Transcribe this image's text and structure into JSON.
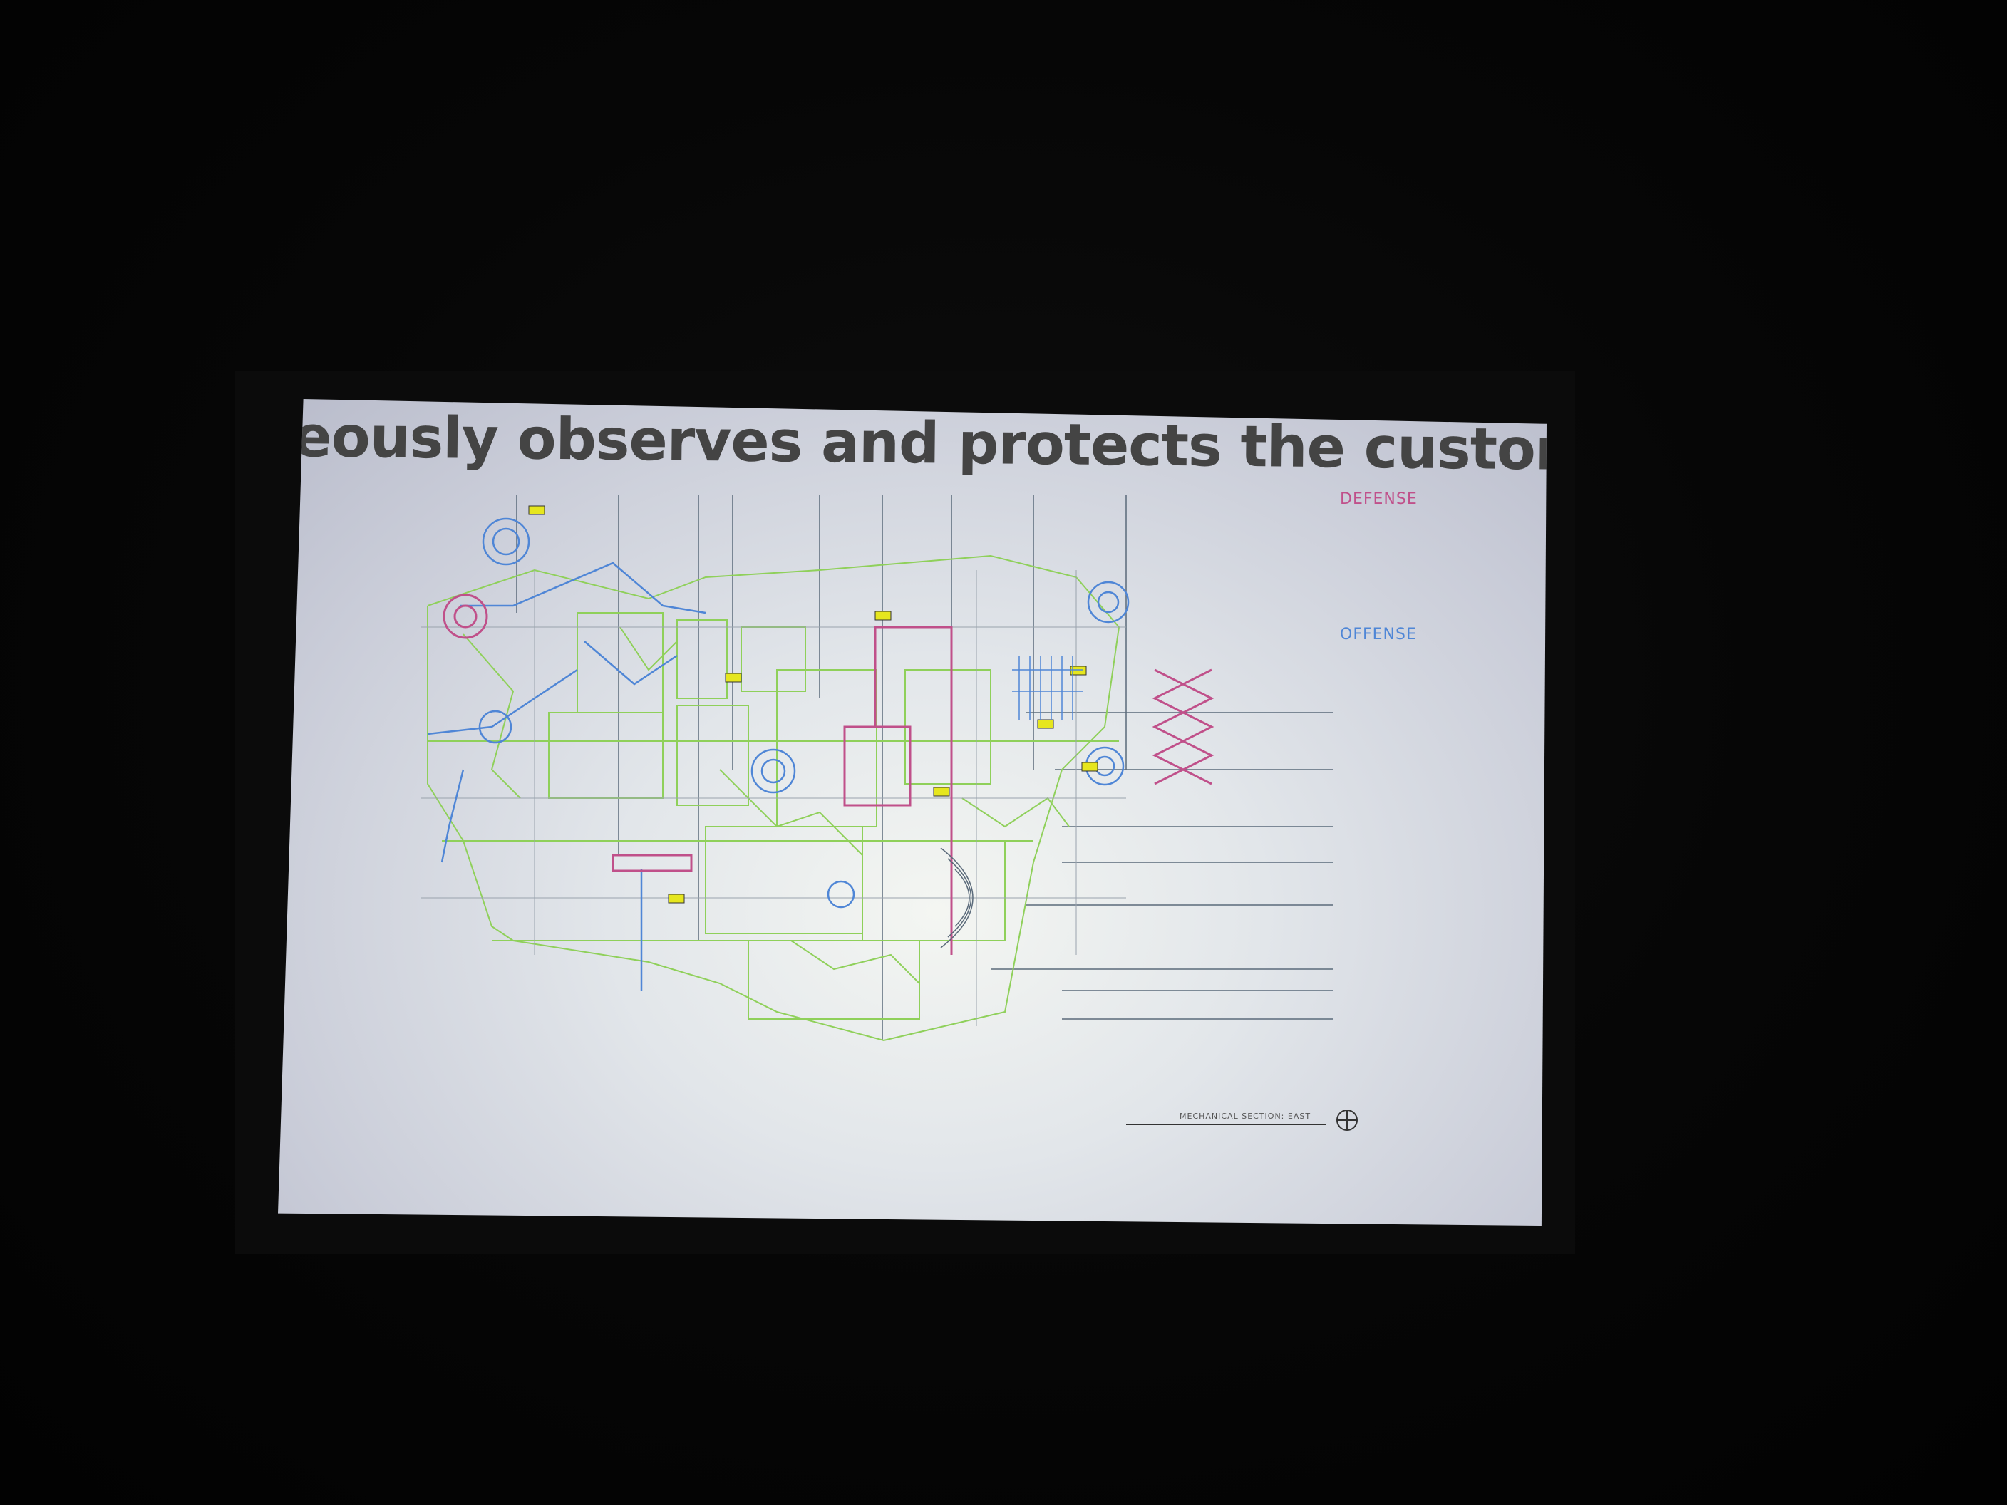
{
  "slide": {
    "heading": "eously observes and protects the customer?"
  },
  "legend": {
    "defense": "DEFENSE",
    "offense": "OFFENSE"
  },
  "drawing": {
    "sheet_title": "MECHANICAL SECTION: EAST"
  },
  "colors": {
    "defense": "#c0508a",
    "offense": "#4f86d6",
    "linework": "#8fd05a",
    "heading": "#444444",
    "screen": "#e2e6ea"
  }
}
